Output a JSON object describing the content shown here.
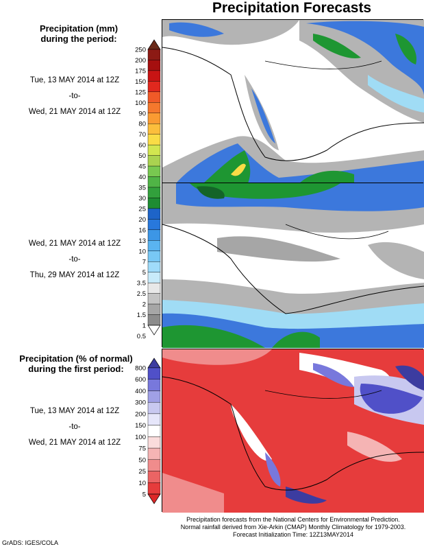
{
  "title": "Precipitation Forecasts",
  "section1": {
    "heading_line1": "Precipitation (mm)",
    "heading_line2": "during the period:",
    "period1": {
      "start": "Tue, 13 MAY 2014 at 12Z",
      "sep": "-to-",
      "end": "Wed, 21 MAY 2014 at 12Z"
    },
    "period2": {
      "start": "Wed, 21 MAY 2014 at 12Z",
      "sep": "-to-",
      "end": "Thu, 29 MAY 2014 at 12Z"
    },
    "colorbar_labels": [
      "250",
      "200",
      "175",
      "150",
      "125",
      "100",
      "90",
      "80",
      "70",
      "60",
      "50",
      "45",
      "40",
      "35",
      "30",
      "25",
      "20",
      "16",
      "13",
      "10",
      "7",
      "5",
      "3.5",
      "2.5",
      "2",
      "1.5",
      "1",
      "0.5"
    ],
    "colorbar_colors": [
      "#6b2a1a",
      "#8c1a14",
      "#a50f0f",
      "#c81414",
      "#e1281e",
      "#f05a28",
      "#f5782d",
      "#fa9b32",
      "#fcbe3c",
      "#fadc46",
      "#d2e650",
      "#aad250",
      "#78c850",
      "#50b446",
      "#32a03c",
      "#1e8c32",
      "#1e64c8",
      "#2878dc",
      "#3c96e6",
      "#5ab4f0",
      "#78c8f5",
      "#a0dcfa",
      "#c8ebfa",
      "#e8e8e8",
      "#c4c4c4",
      "#a6a6a6",
      "#8c8c8c",
      "#ffffff"
    ]
  },
  "section2": {
    "heading_line1": "Precipitation (% of normal)",
    "heading_line2": "during the first period:",
    "period": {
      "start": "Tue, 13 MAY 2014 at 12Z",
      "sep": "-to-",
      "end": "Wed, 21 MAY 2014 at 12Z"
    },
    "colorbar_labels": [
      "800",
      "600",
      "400",
      "300",
      "200",
      "150",
      "100",
      "75",
      "50",
      "25",
      "10",
      "5"
    ],
    "colorbar_colors": [
      "#3c3ca0",
      "#5050c8",
      "#7878dc",
      "#a0a0e6",
      "#c8c8f0",
      "#e6e6fa",
      "#ffffff",
      "#fadcdc",
      "#f5b4b4",
      "#f08c8c",
      "#eb6464",
      "#e63c3c",
      "#dc2828"
    ]
  },
  "footer": {
    "line1": "Precipitation forecasts from the National Centers for Environmental Prediction.",
    "line2": "Normal rainfall derived from Xie-Arkin (CMAP) Monthly Climatology for 1979-2003.",
    "line3": "Forecast Initialization Time: 12Z13MAY2014"
  },
  "credit": "GrADS: IGES/COLA",
  "colors": {
    "land_dry": "#ffffff",
    "gray_light": "#b4b4b4",
    "gray_dark": "#8c8c8c",
    "blue": "#3c78dc",
    "cyan": "#a0dcf5",
    "green": "#1e9632",
    "red": "#e63232",
    "purple": "#5a5ad2"
  }
}
